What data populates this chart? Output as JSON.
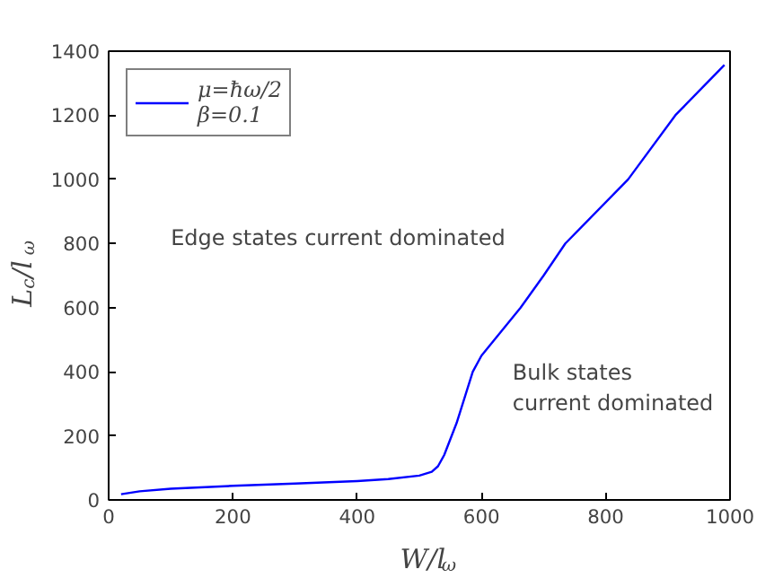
{
  "chart_data": {
    "type": "line",
    "xlabel": "W/l$_{ω}$",
    "ylabel": "L$_{c}$/l$_{ω}$",
    "xlim": [
      0,
      1000
    ],
    "ylim": [
      0,
      1400
    ],
    "xticks": [
      0,
      200,
      400,
      600,
      800,
      1000
    ],
    "yticks": [
      0,
      200,
      400,
      600,
      800,
      1000,
      1200,
      1400
    ],
    "grid": false,
    "legend": "top left",
    "line_style": "solid",
    "series": [
      {
        "name": "μ=ħω/2\nβ=0.1",
        "color": "#0000ff",
        "x": [
          20,
          50,
          100,
          200,
          300,
          400,
          450,
          500,
          520,
          530,
          540,
          560,
          586,
          600,
          663,
          700,
          735,
          836,
          912,
          991
        ],
        "values": [
          18,
          27,
          35,
          44,
          51,
          59,
          65,
          76,
          88,
          105,
          140,
          240,
          400,
          450,
          600,
          700,
          800,
          1000,
          1200,
          1357
        ]
      }
    ],
    "annotations": [
      "Edge states current dominated",
      "Bulk states\ncurrent dominated"
    ]
  }
}
